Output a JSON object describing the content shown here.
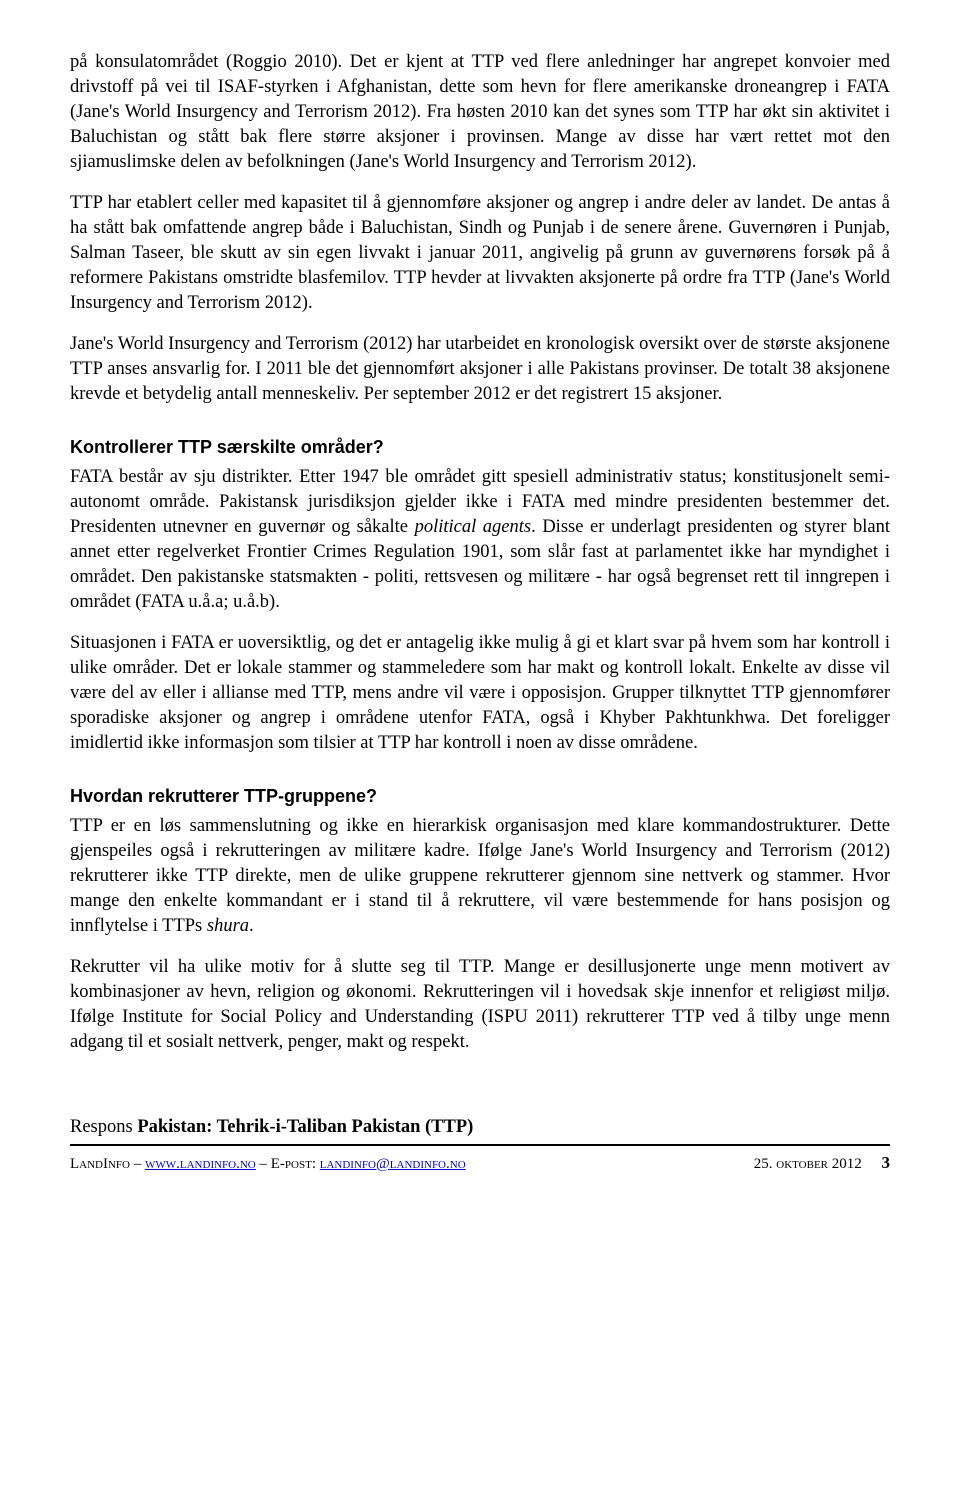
{
  "p1": "på konsulatområdet (Roggio 2010). Det er kjent at TTP ved flere anledninger har angrepet konvoier med drivstoff på vei til ISAF-styrken i Afghanistan, dette som hevn for flere amerikanske droneangrep i FATA (Jane's World Insurgency and Terrorism 2012). Fra høsten 2010 kan det synes som TTP har økt sin aktivitet i Baluchistan og stått bak flere større aksjoner i provinsen. Mange av disse har vært rettet mot den sjiamuslimske delen av befolkningen (Jane's World Insurgency and Terrorism 2012).",
  "p2": "TTP har etablert celler med kapasitet til å gjennomføre aksjoner og angrep i andre deler av landet. De antas å ha stått bak omfattende angrep både i Baluchistan, Sindh og Punjab i de senere årene. Guvernøren i Punjab, Salman Taseer, ble skutt av sin egen livvakt i januar 2011, angivelig på grunn av guvernørens forsøk på å reformere Pakistans omstridte blasfemilov. TTP hevder at livvakten aksjonerte på ordre fra TTP (Jane's World Insurgency and Terrorism 2012).",
  "p3": "Jane's World Insurgency and Terrorism (2012) har utarbeidet en kronologisk oversikt over de største aksjonene TTP anses ansvarlig for. I 2011 ble det gjennomført aksjoner i alle Pakistans provinser. De totalt 38 aksjonene krevde et betydelig antall menneskeliv. Per september 2012 er det registrert 15 aksjoner.",
  "h1": "Kontrollerer TTP særskilte områder?",
  "p4a": "FATA består av sju distrikter. Etter 1947 ble området gitt spesiell administrativ status; konstitusjonelt semi-autonomt område. Pakistansk jurisdiksjon gjelder ikke i FATA med mindre presidenten bestemmer det. Presidenten utnevner en guvernør og såkalte ",
  "p4b": "political agents",
  "p4c": ". Disse er underlagt presidenten og styrer blant annet etter regelverket Frontier Crimes Regulation 1901, som slår fast at parlamentet ikke har myndighet i området. Den pakistanske statsmakten - politi, rettsvesen og militære - har også begrenset rett til inngrepen i området (FATA u.å.a; u.å.b).",
  "p5": "Situasjonen i FATA er uoversiktlig, og det er antagelig ikke mulig å gi et klart svar på hvem som har kontroll i ulike områder. Det er lokale stammer og stammeledere som har makt og kontroll lokalt. Enkelte av disse vil være del av eller i allianse med TTP, mens andre vil være i opposisjon. Grupper tilknyttet TTP gjennomfører sporadiske aksjoner og angrep i områdene utenfor FATA, også i Khyber Pakhtunkhwa. Det foreligger imidlertid ikke informasjon som tilsier at TTP har kontroll i noen av disse områdene.",
  "h2": "Hvordan rekrutterer TTP-gruppene?",
  "p6a": "TTP er en løs sammenslutning og ikke en hierarkisk organisasjon med klare kommandostrukturer. Dette gjenspeiles også i rekrutteringen av militære kadre. Ifølge Jane's World Insurgency and Terrorism (2012) rekrutterer ikke TTP direkte, men de ulike gruppene rekrutterer gjennom sine nettverk og stammer. Hvor mange den enkelte kommandant er i stand til å rekruttere, vil være bestemmende for hans posisjon og innflytelse i TTPs ",
  "p6b": "shura",
  "p6c": ".",
  "p7": "Rekrutter vil ha ulike motiv for å slutte seg til TTP. Mange er desillusjonerte unge menn motivert av kombinasjoner av hevn, religion og økonomi. Rekrutteringen vil i hovedsak skje innenfor et religiøst miljø. Ifølge Institute for Social Policy and Understanding (ISPU 2011) rekrutterer TTP ved å tilby unge menn adgang til et sosialt nettverk, penger, makt og respekt.",
  "footer": {
    "title_prefix": "Respons ",
    "title_bold": "Pakistan: Tehrik-i-Taliban Pakistan (TTP)",
    "org": "LandInfo",
    "sep": " – ",
    "url1_label": "www.landinfo.no",
    "epost_label": "E-post: ",
    "url2_label": "landinfo@landinfo.no",
    "date": "25. oktober 2012",
    "pagenum": "3"
  }
}
